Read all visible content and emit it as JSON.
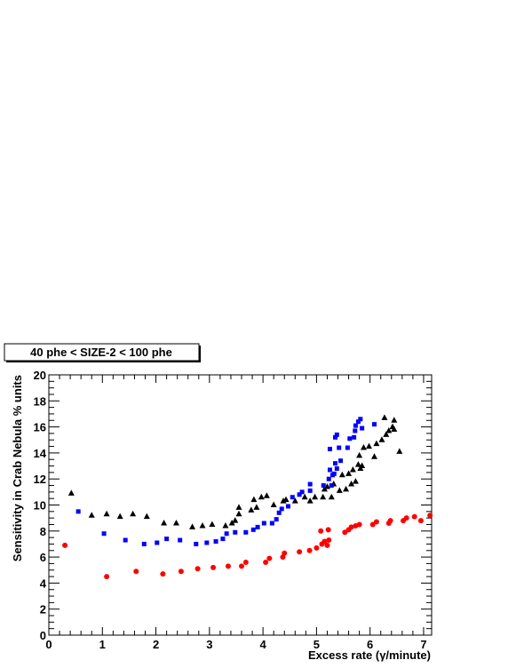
{
  "chart_data": {
    "type": "scatter",
    "title": "40 phe < SIZE-2 < 100 phe",
    "xlabel": "Excess rate (γ/minute)",
    "ylabel": "Sensitivity in Crab Nebula % units",
    "xlim": [
      0,
      7.15
    ],
    "ylim": [
      0,
      20
    ],
    "x_ticks": [
      "0",
      "1",
      "2",
      "3",
      "4",
      "5",
      "6",
      "7"
    ],
    "y_ticks": [
      "0",
      "2",
      "4",
      "6",
      "8",
      "10",
      "12",
      "14",
      "16",
      "18",
      "20"
    ],
    "grid": false,
    "series": [
      {
        "marker": "triangle",
        "color": "#000000",
        "points": [
          [
            0.42,
            10.9
          ],
          [
            0.8,
            9.2
          ],
          [
            1.08,
            9.3
          ],
          [
            1.33,
            9.1
          ],
          [
            1.57,
            9.3
          ],
          [
            1.83,
            9.1
          ],
          [
            2.15,
            8.6
          ],
          [
            2.38,
            8.6
          ],
          [
            2.68,
            8.3
          ],
          [
            2.87,
            8.4
          ],
          [
            3.05,
            8.5
          ],
          [
            3.3,
            8.4
          ],
          [
            3.42,
            8.6
          ],
          [
            3.48,
            8.8
          ],
          [
            3.55,
            9.3
          ],
          [
            3.55,
            9.8
          ],
          [
            3.78,
            9.6
          ],
          [
            3.83,
            10.4
          ],
          [
            3.88,
            9.8
          ],
          [
            3.97,
            10.6
          ],
          [
            4.07,
            10.7
          ],
          [
            4.2,
            10.0
          ],
          [
            4.38,
            10.3
          ],
          [
            4.43,
            10.4
          ],
          [
            4.6,
            10.3
          ],
          [
            4.78,
            10.6
          ],
          [
            4.88,
            10.3
          ],
          [
            4.97,
            10.6
          ],
          [
            5.12,
            10.6
          ],
          [
            5.15,
            11.2
          ],
          [
            5.2,
            11.4
          ],
          [
            5.28,
            10.6
          ],
          [
            5.32,
            11.6
          ],
          [
            5.43,
            11.1
          ],
          [
            5.48,
            12.3
          ],
          [
            5.55,
            11.2
          ],
          [
            5.6,
            12.4
          ],
          [
            5.65,
            11.6
          ],
          [
            5.68,
            12.7
          ],
          [
            5.73,
            11.8
          ],
          [
            5.78,
            13.1
          ],
          [
            5.8,
            13.8
          ],
          [
            5.82,
            12.8
          ],
          [
            5.85,
            13.0
          ],
          [
            5.88,
            14.4
          ],
          [
            5.98,
            14.5
          ],
          [
            6.08,
            13.7
          ],
          [
            6.12,
            14.7
          ],
          [
            6.22,
            15.0
          ],
          [
            6.27,
            16.7
          ],
          [
            6.3,
            15.4
          ],
          [
            6.35,
            15.7
          ],
          [
            6.42,
            16.0
          ],
          [
            6.45,
            15.8
          ],
          [
            6.45,
            16.5
          ],
          [
            6.55,
            14.1
          ]
        ]
      },
      {
        "marker": "square",
        "color": "#0000ff",
        "points": [
          [
            0.55,
            9.5
          ],
          [
            1.03,
            7.8
          ],
          [
            1.43,
            7.3
          ],
          [
            1.78,
            7.0
          ],
          [
            2.02,
            7.1
          ],
          [
            2.2,
            7.4
          ],
          [
            2.45,
            7.3
          ],
          [
            2.75,
            7.0
          ],
          [
            2.95,
            7.1
          ],
          [
            3.12,
            7.2
          ],
          [
            3.25,
            7.4
          ],
          [
            3.32,
            7.8
          ],
          [
            3.48,
            7.9
          ],
          [
            3.68,
            7.9
          ],
          [
            3.82,
            8.1
          ],
          [
            3.9,
            8.3
          ],
          [
            4.02,
            8.6
          ],
          [
            4.17,
            8.6
          ],
          [
            4.25,
            8.9
          ],
          [
            4.3,
            9.4
          ],
          [
            4.35,
            9.7
          ],
          [
            4.47,
            9.9
          ],
          [
            4.55,
            10.6
          ],
          [
            4.68,
            10.8
          ],
          [
            4.73,
            11.0
          ],
          [
            4.88,
            11.6
          ],
          [
            4.88,
            11.1
          ],
          [
            5.13,
            11.5
          ],
          [
            5.23,
            12.0
          ],
          [
            5.25,
            12.7
          ],
          [
            5.25,
            14.3
          ],
          [
            5.28,
            11.5
          ],
          [
            5.3,
            12.3
          ],
          [
            5.33,
            12.4
          ],
          [
            5.35,
            13.2
          ],
          [
            5.35,
            15.2
          ],
          [
            5.38,
            12.8
          ],
          [
            5.38,
            15.4
          ],
          [
            5.42,
            14.4
          ],
          [
            5.45,
            13.4
          ],
          [
            5.58,
            14.4
          ],
          [
            5.62,
            15.1
          ],
          [
            5.7,
            15.2
          ],
          [
            5.72,
            15.7
          ],
          [
            5.73,
            16.1
          ],
          [
            5.78,
            16.4
          ],
          [
            5.82,
            16.6
          ],
          [
            5.85,
            15.9
          ],
          [
            6.08,
            16.2
          ]
        ]
      },
      {
        "marker": "circle",
        "color": "#ff0000",
        "points": [
          [
            0.3,
            6.9
          ],
          [
            1.08,
            4.5
          ],
          [
            1.63,
            4.9
          ],
          [
            2.13,
            4.7
          ],
          [
            2.47,
            4.9
          ],
          [
            2.78,
            5.1
          ],
          [
            3.07,
            5.2
          ],
          [
            3.35,
            5.3
          ],
          [
            3.6,
            5.3
          ],
          [
            3.68,
            5.6
          ],
          [
            4.05,
            5.6
          ],
          [
            4.12,
            5.9
          ],
          [
            4.37,
            6.0
          ],
          [
            4.4,
            6.3
          ],
          [
            4.68,
            6.4
          ],
          [
            4.87,
            6.5
          ],
          [
            5.0,
            6.7
          ],
          [
            5.08,
            8.0
          ],
          [
            5.1,
            7.0
          ],
          [
            5.15,
            7.2
          ],
          [
            5.2,
            6.9
          ],
          [
            5.22,
            8.1
          ],
          [
            5.23,
            7.3
          ],
          [
            5.53,
            7.9
          ],
          [
            5.6,
            8.1
          ],
          [
            5.65,
            8.3
          ],
          [
            5.73,
            8.4
          ],
          [
            5.8,
            8.5
          ],
          [
            6.05,
            8.5
          ],
          [
            6.12,
            8.7
          ],
          [
            6.35,
            8.6
          ],
          [
            6.38,
            8.8
          ],
          [
            6.62,
            8.8
          ],
          [
            6.68,
            9.0
          ],
          [
            6.83,
            9.1
          ],
          [
            6.95,
            8.8
          ],
          [
            7.12,
            9.2
          ]
        ]
      }
    ]
  }
}
